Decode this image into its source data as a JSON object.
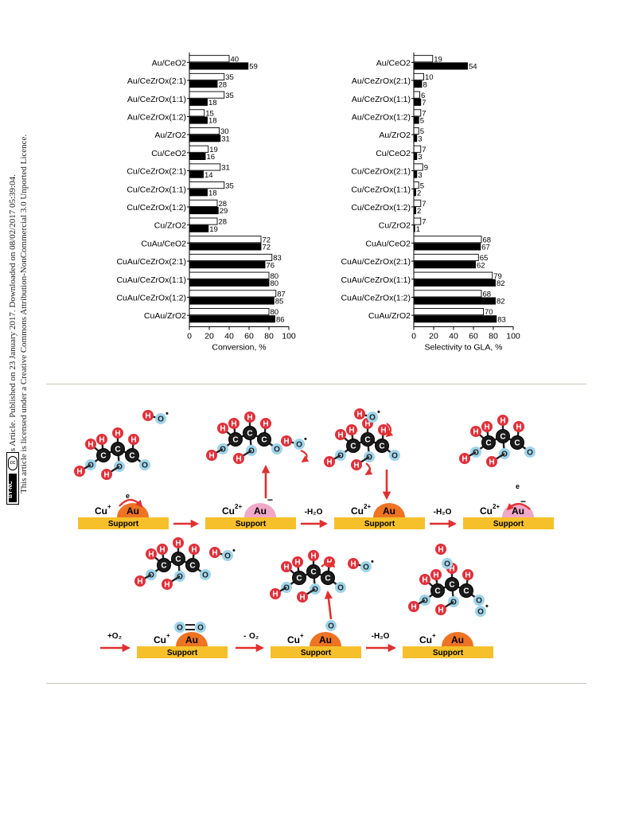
{
  "sidebar": {
    "line1": "Open Access Article. Published on 23 January 2017. Downloaded on 08/02/2017 05:39:04.",
    "line2": "This article is licensed under a Creative Commons Attribution-NonCommercial 3.0 Unported Licence.",
    "badge_cc": "cc",
    "badge_label": "BY-NC"
  },
  "chart_data": [
    {
      "type": "bar",
      "orientation": "horizontal",
      "categories": [
        "Au/CeO2",
        "Au/CeZrOx(2:1)",
        "Au/CeZrOx(1:1)",
        "Au/CeZrOx(1:2)",
        "Au/ZrO2",
        "Cu/CeO2",
        "Cu/CeZrOx(2:1)",
        "Cu/CeZrOx(1:1)",
        "Cu/CeZrOx(1:2)",
        "Cu/ZrO2",
        "CuAu/CeO2",
        "CuAu/CeZrOx(2:1)",
        "CuAu/CeZrOx(1:1)",
        "CuAu/CeZrOx(1:2)",
        "CuAu/ZrO2"
      ],
      "series": [
        {
          "fill": "#ffffff",
          "values": [
            40,
            35,
            35,
            15,
            30,
            19,
            31,
            35,
            28,
            28,
            72,
            83,
            80,
            87,
            80
          ]
        },
        {
          "fill": "#000000",
          "values": [
            59,
            28,
            18,
            18,
            31,
            16,
            14,
            18,
            29,
            19,
            72,
            76,
            80,
            85,
            86
          ]
        }
      ],
      "xlabel": "Conversion, %",
      "xlim": [
        0,
        100
      ],
      "xticks": [
        0,
        20,
        40,
        60,
        80,
        100
      ]
    },
    {
      "type": "bar",
      "orientation": "horizontal",
      "categories": [
        "Au/CeO2",
        "Au/CeZrOx(2:1)",
        "Au/CeZrOx(1:1)",
        "Au/CeZrOx(1:2)",
        "Au/ZrO2",
        "Cu/CeO2",
        "Cu/CeZrOx(2:1)",
        "Cu/CeZrOx(1:1)",
        "Cu/CeZrOx(1:2)",
        "Cu/ZrO2",
        "CuAu/CeO2",
        "CuAu/CeZrOx(2:1)",
        "CuAu/CeZrOx(1:1)",
        "CuAu/CeZrOx(1:2)",
        "CuAu/ZrO2"
      ],
      "series": [
        {
          "fill": "#ffffff",
          "values": [
            19,
            10,
            6,
            7,
            5,
            7,
            9,
            5,
            7,
            7,
            68,
            65,
            79,
            68,
            70
          ]
        },
        {
          "fill": "#000000",
          "values": [
            54,
            8,
            7,
            5,
            3,
            3,
            3,
            2,
            2,
            1,
            67,
            62,
            82,
            82,
            83
          ]
        }
      ],
      "xlabel": "Selectivity to GLA, %",
      "xlim": [
        0,
        100
      ],
      "xticks": [
        0,
        20,
        40,
        60,
        80,
        100
      ]
    }
  ],
  "scheme": {
    "support_label": "Support",
    "au_label": "Au",
    "cu_plus": "Cu",
    "cu_2plus": "Cu",
    "sup_plus": "+",
    "sup_2plus": "2+",
    "electron": "e",
    "minus": "−",
    "step_h2o": "-H₂O",
    "step_o2": "+O₂",
    "step_half_o2_a": "-",
    "step_half_o2_b": "O₂",
    "atom_h": "H",
    "atom_c": "C",
    "atom_o": "O",
    "radical": "•",
    "o2_molecule": "O=O",
    "colors": {
      "support": "#f5c02a",
      "au_cuplus": "#ee7322",
      "au_cu2plus": "#f0a8c8",
      "arrow": "#e03030",
      "atom_h": "#e0303a",
      "atom_o": "#9fd4ea",
      "atom_c": "#1a1a1a"
    }
  }
}
